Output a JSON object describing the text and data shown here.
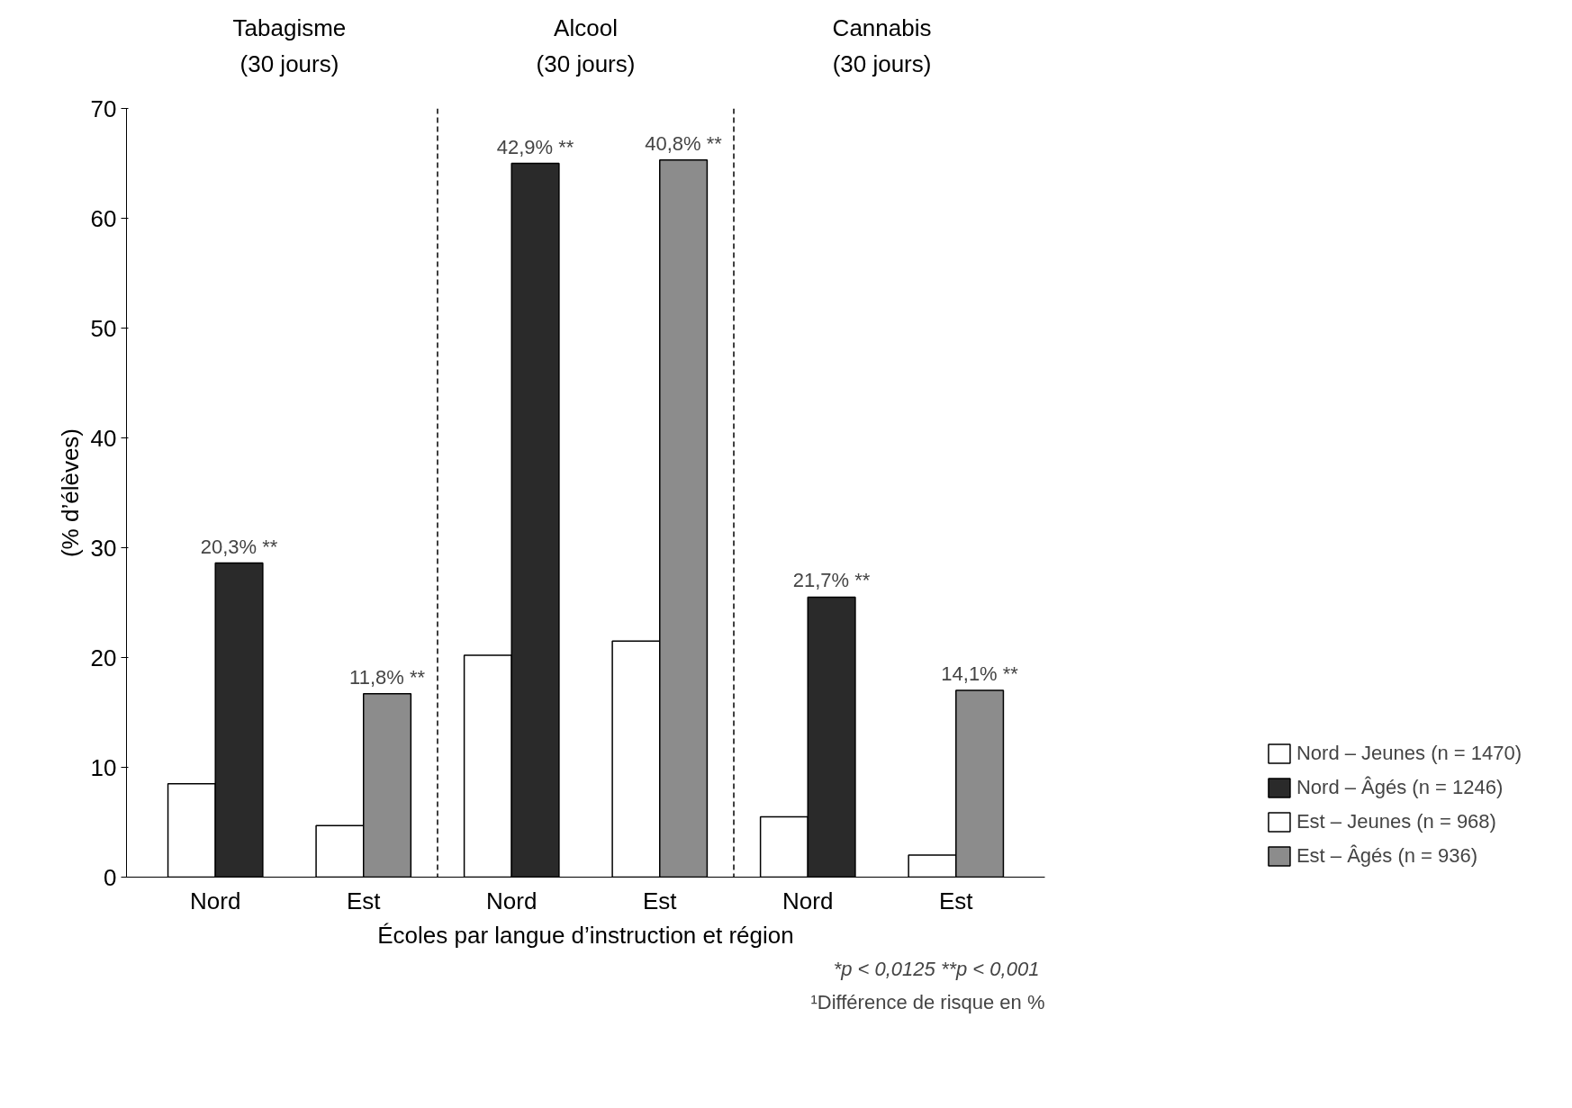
{
  "chart_data": {
    "type": "bar",
    "xlabel": "Écoles par langue d’instruction et région",
    "ylabel": "(% d’élèves)",
    "categories": [
      "Nord",
      "Est",
      "Nord",
      "Est",
      "Nord",
      "Est"
    ],
    "series": [
      {
        "name": "Nord – Jeunes (n = 1470)",
        "color": "#ffffff",
        "values": [
          8.5,
          null,
          20.2,
          null,
          5.5,
          null
        ]
      },
      {
        "name": "Nord – Âgés (n = 1246)",
        "color": "#2a2a2a",
        "values": [
          28.6,
          null,
          65.0,
          null,
          25.5,
          null
        ]
      },
      {
        "name": "Est – Jeunes (n = 968)",
        "color": "#ffffff",
        "values": [
          null,
          4.7,
          null,
          21.5,
          null,
          2.0
        ]
      },
      {
        "name": "Est – Âgés (n = 936)",
        "color": "#8c8c8c",
        "values": [
          null,
          16.7,
          null,
          65.3,
          null,
          17.0
        ]
      }
    ],
    "ylim": [
      0,
      70
    ],
    "yticks": [
      0,
      10,
      20,
      30,
      40,
      50,
      60,
      70
    ],
    "annotations": [
      "Tabagisme\n(30 jours)",
      "Alcool\n(30 jours)",
      "Cannabis\n(30 jours)",
      "*p < 0,0125  **p < 0,001",
      "¹Différence de risque en %",
      "20,3% **",
      "11,8% **",
      "42,9% **",
      "40,8% **",
      "21,7% **",
      "14,1% **"
    ],
    "grid": false,
    "legend": "bottom right"
  }
}
